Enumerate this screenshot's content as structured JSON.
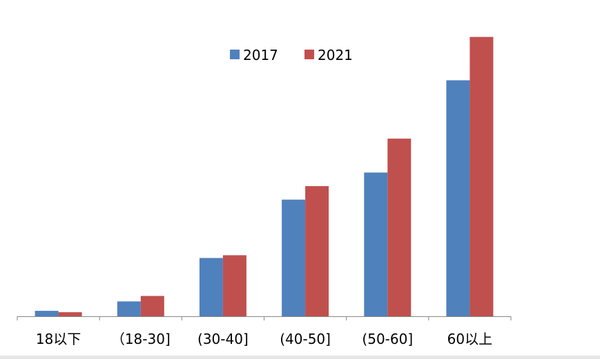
{
  "chart_data": {
    "type": "bar",
    "title": "",
    "xlabel": "",
    "ylabel": "",
    "categories": [
      "18以下",
      "（18-30]",
      "(30-40]",
      "(40-50]",
      "(50-60]",
      "60以上"
    ],
    "series": [
      {
        "name": "2017",
        "color": "#4f81bd",
        "values": [
          2,
          5.5,
          21.5,
          43,
          53,
          87
        ]
      },
      {
        "name": "2021",
        "color": "#c0504d",
        "values": [
          1.5,
          7.5,
          22.5,
          48,
          65.5,
          103
        ]
      }
    ],
    "ylim": [
      0,
      110
    ],
    "grid": false,
    "y_axis_visible": false,
    "legend_position": "top-center"
  }
}
